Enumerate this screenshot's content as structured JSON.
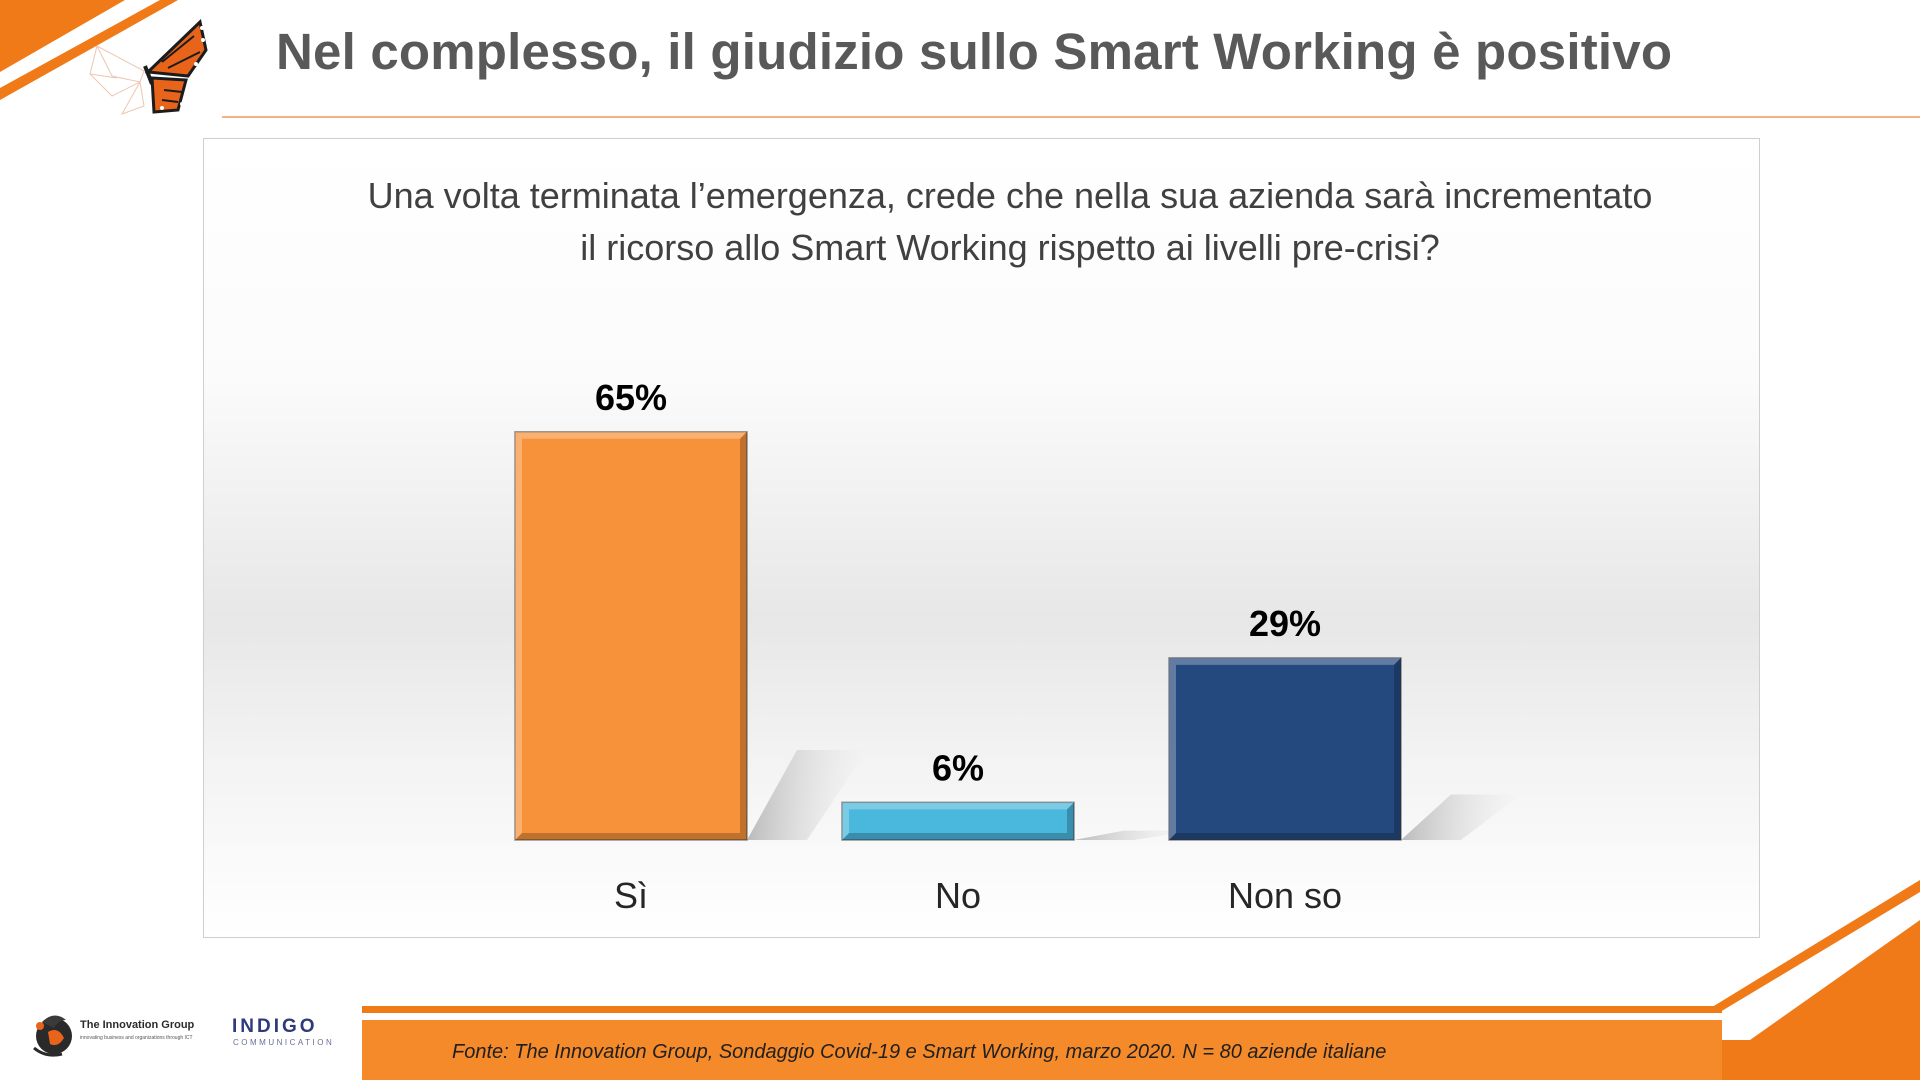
{
  "slide": {
    "title": "Nel complesso, il giudizio sullo Smart Working è positivo",
    "question": "Una volta terminata l’emergenza, crede che nella sua azienda sarà incrementato il ricorso allo Smart Working rispetto ai livelli pre-crisi?",
    "source": "Fonte: The Innovation Group, Sondaggio Covid-19 e Smart Working, marzo 2020. N = 80  aziende italiane"
  },
  "logos": {
    "innovation_group": {
      "name": "The Innovation Group",
      "tagline": "innovating business and organizations through ICT"
    },
    "indigo": {
      "name": "INDIGO",
      "sub": "COMMUNICATION"
    },
    "butterfly": "monarch-butterfly-icon"
  },
  "colors": {
    "accent_orange": "#f07a17",
    "title_gray": "#595959",
    "bar_si": "#f7923a",
    "bar_no": "#49b8dc",
    "bar_nonso": "#24497f"
  },
  "chart_data": {
    "type": "bar",
    "categories": [
      "Sì",
      "No",
      "Non so"
    ],
    "values": [
      65,
      6,
      29
    ],
    "data_labels": [
      "65%",
      "6%",
      "29%"
    ],
    "unit": "%",
    "ylim": [
      0,
      70
    ],
    "grid": false,
    "legend": "none",
    "bar_colors": [
      "#f7923a",
      "#49b8dc",
      "#24497f"
    ]
  }
}
